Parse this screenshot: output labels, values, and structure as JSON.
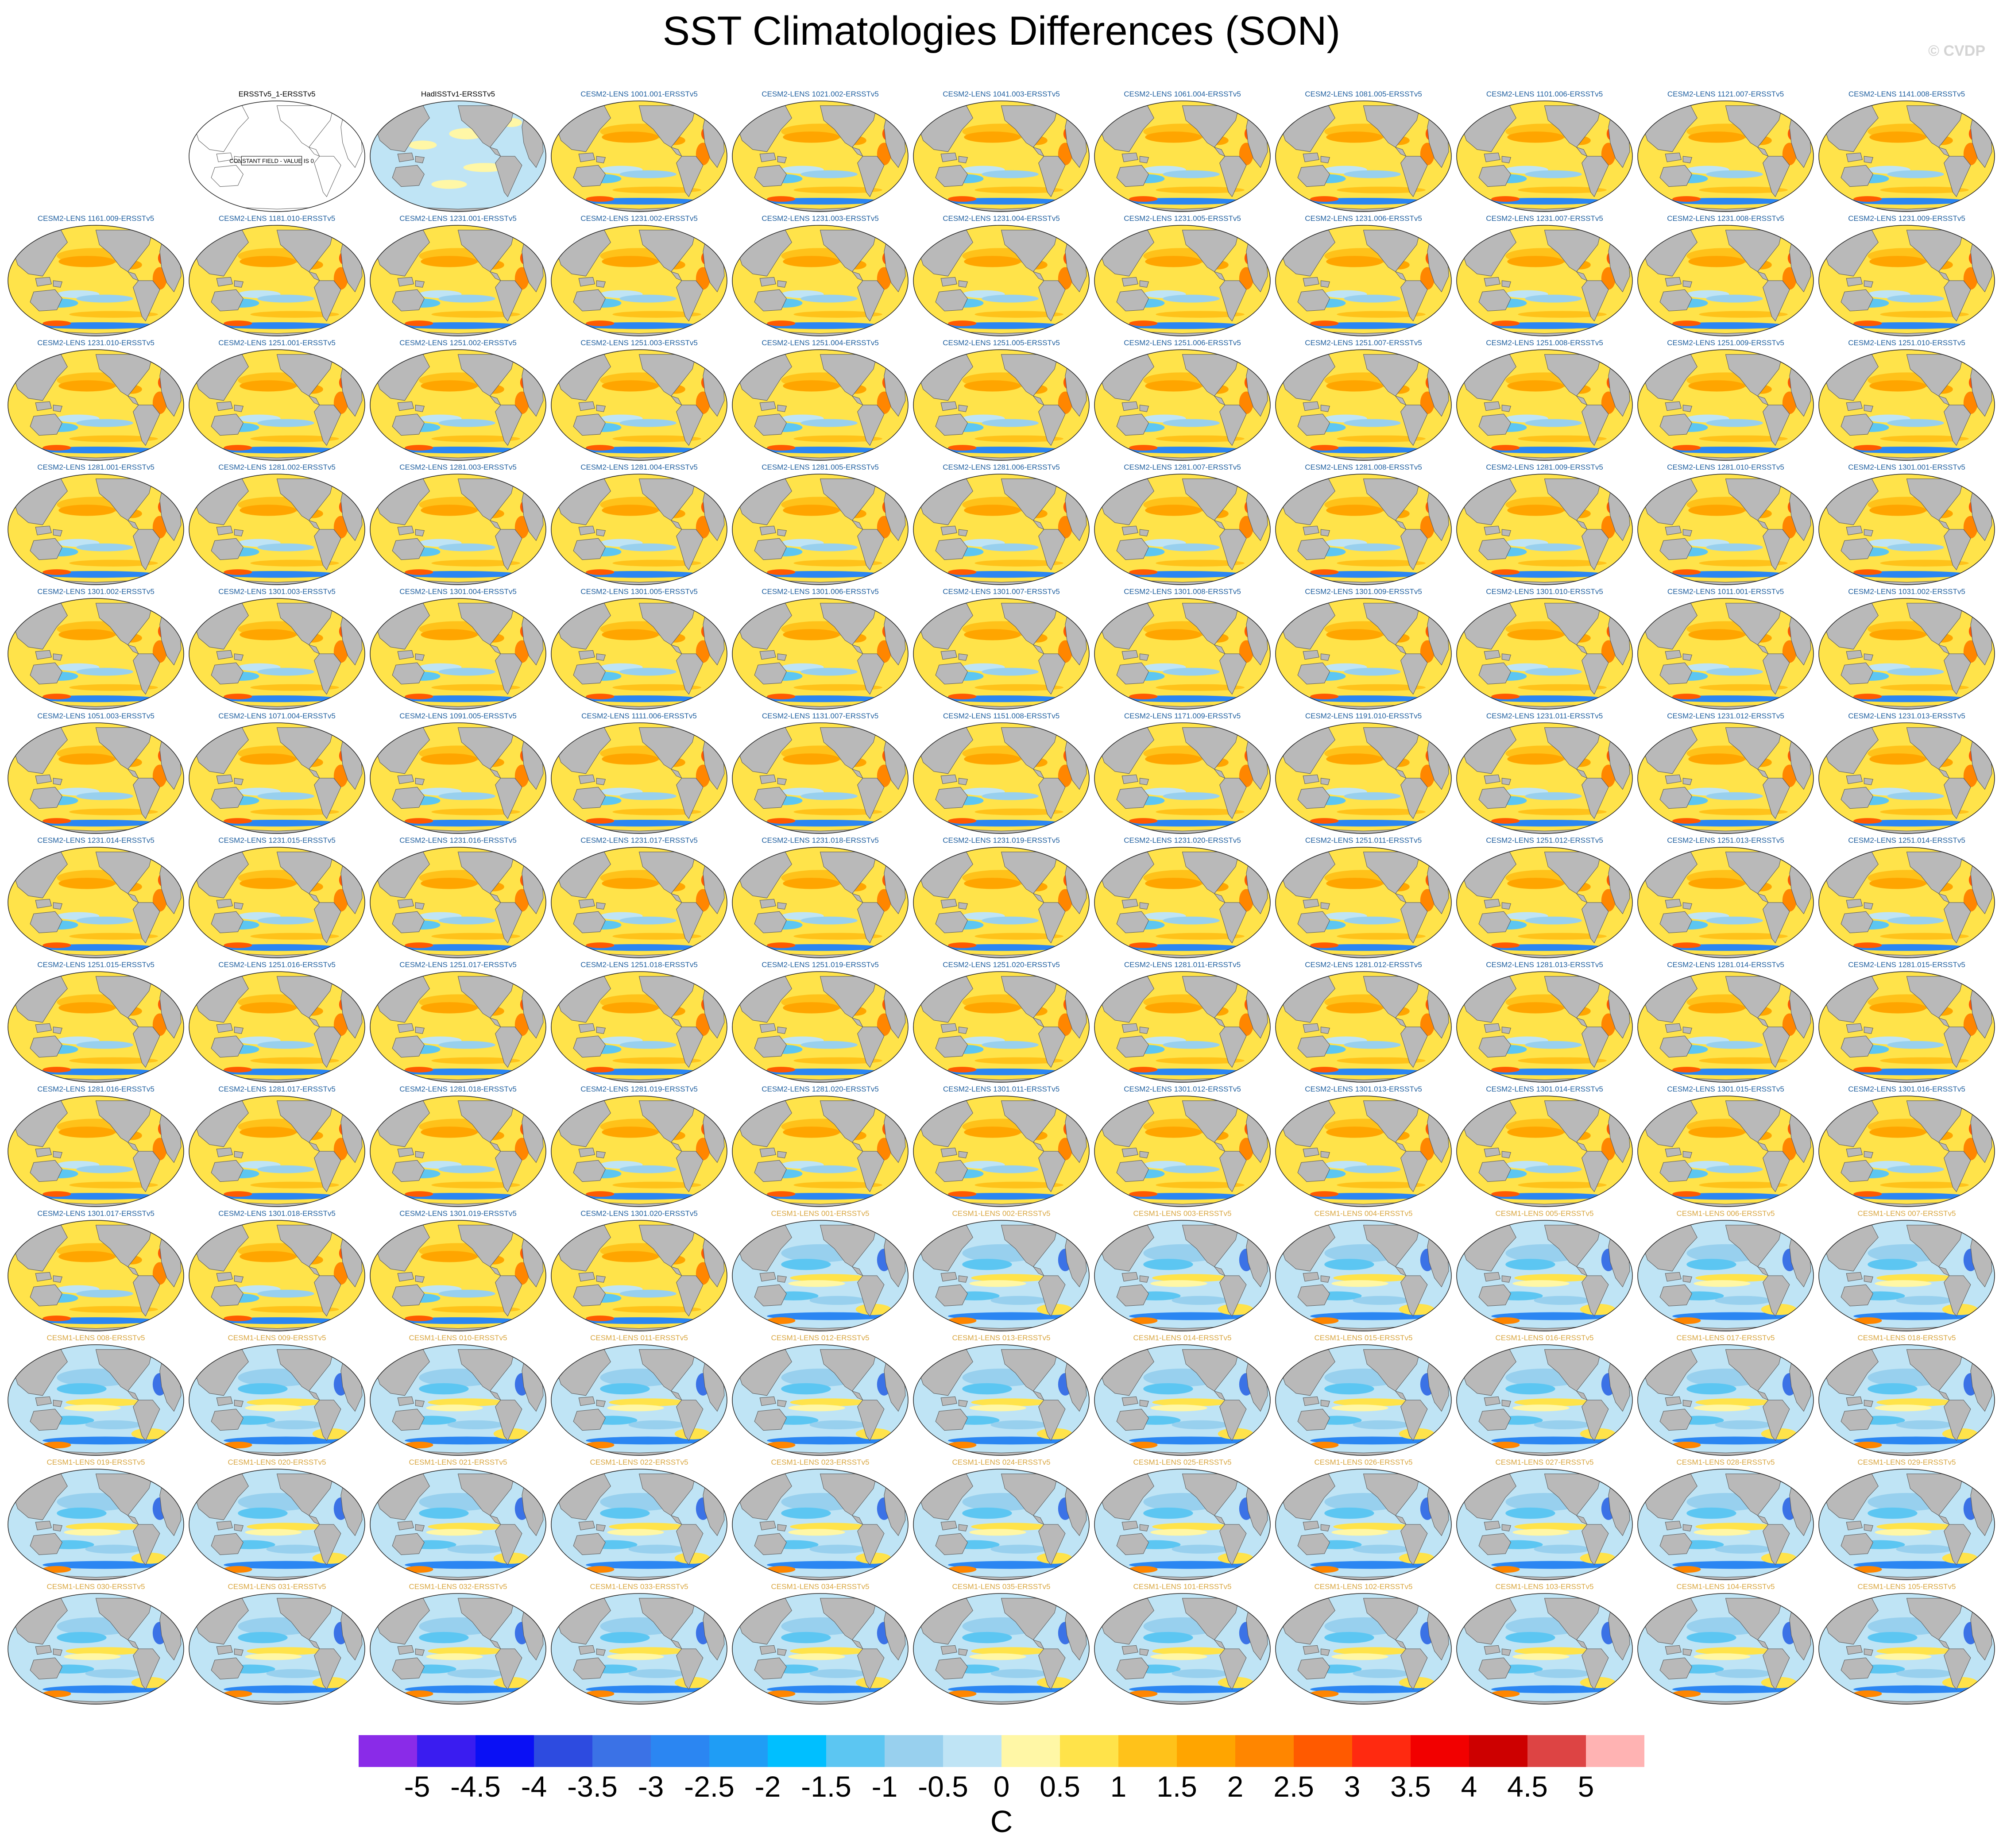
{
  "figure": {
    "title": "SST Climatologies Differences (SON)",
    "watermark": "© CVDP",
    "units": "C"
  },
  "chart_data": {
    "type": "heatmap",
    "title": "SST Climatologies Differences (SON)",
    "colorbar_levels": [
      "-5",
      "-4.5",
      "-4",
      "-3.5",
      "-3",
      "-2.5",
      "-2",
      "-1.5",
      "-1",
      "-0.5",
      "0",
      "0.5",
      "1",
      "1.5",
      "2",
      "2.5",
      "3",
      "3.5",
      "4",
      "4.5",
      "5"
    ],
    "colorbar_colors": [
      "#8a2be8",
      "#3a1cf0",
      "#0a10f5",
      "#2d4be0",
      "#3b72e6",
      "#2b86f2",
      "#1f9df5",
      "#00bfff",
      "#5cc6f2",
      "#98d0ee",
      "#bfe4f5",
      "#fff7a6",
      "#ffe34a",
      "#ffc21a",
      "#ffa500",
      "#ff8600",
      "#ff5a00",
      "#ff2a10",
      "#f20000",
      "#cd0000",
      "#dd4444",
      "#ffb3b3"
    ],
    "units": "C",
    "panel_titles": [
      "ERSSTv5_1-ERSSTv5",
      "HadISSTv1-ERSSTv5",
      "CESM2-LENS 1001.001-ERSSTv5",
      "CESM2-LENS 1021.002-ERSSTv5",
      "CESM2-LENS 1041.003-ERSSTv5",
      "CESM2-LENS 1061.004-ERSSTv5",
      "CESM2-LENS 1081.005-ERSSTv5",
      "CESM2-LENS 1101.006-ERSSTv5",
      "CESM2-LENS 1121.007-ERSSTv5",
      "CESM2-LENS 1141.008-ERSSTv5",
      "CESM2-LENS 1161.009-ERSSTv5",
      "CESM2-LENS 1181.010-ERSSTv5",
      "CESM2-LENS 1231.001-ERSSTv5",
      "CESM2-LENS 1231.002-ERSSTv5",
      "CESM2-LENS 1231.003-ERSSTv5",
      "CESM2-LENS 1231.004-ERSSTv5",
      "CESM2-LENS 1231.005-ERSSTv5",
      "CESM2-LENS 1231.006-ERSSTv5",
      "CESM2-LENS 1231.007-ERSSTv5",
      "CESM2-LENS 1231.008-ERSSTv5",
      "CESM2-LENS 1231.009-ERSSTv5",
      "CESM2-LENS 1231.010-ERSSTv5",
      "CESM2-LENS 1251.001-ERSSTv5",
      "CESM2-LENS 1251.002-ERSSTv5",
      "CESM2-LENS 1251.003-ERSSTv5",
      "CESM2-LENS 1251.004-ERSSTv5",
      "CESM2-LENS 1251.005-ERSSTv5",
      "CESM2-LENS 1251.006-ERSSTv5",
      "CESM2-LENS 1251.007-ERSSTv5",
      "CESM2-LENS 1251.008-ERSSTv5",
      "CESM2-LENS 1251.009-ERSSTv5",
      "CESM2-LENS 1251.010-ERSSTv5",
      "CESM2-LENS 1281.001-ERSSTv5",
      "CESM2-LENS 1281.002-ERSSTv5",
      "CESM2-LENS 1281.003-ERSSTv5",
      "CESM2-LENS 1281.004-ERSSTv5",
      "CESM2-LENS 1281.005-ERSSTv5",
      "CESM2-LENS 1281.006-ERSSTv5",
      "CESM2-LENS 1281.007-ERSSTv5",
      "CESM2-LENS 1281.008-ERSSTv5",
      "CESM2-LENS 1281.009-ERSSTv5",
      "CESM2-LENS 1281.010-ERSSTv5",
      "CESM2-LENS 1301.001-ERSSTv5",
      "CESM2-LENS 1301.002-ERSSTv5",
      "CESM2-LENS 1301.003-ERSSTv5",
      "CESM2-LENS 1301.004-ERSSTv5",
      "CESM2-LENS 1301.005-ERSSTv5",
      "CESM2-LENS 1301.006-ERSSTv5",
      "CESM2-LENS 1301.007-ERSSTv5",
      "CESM2-LENS 1301.008-ERSSTv5",
      "CESM2-LENS 1301.009-ERSSTv5",
      "CESM2-LENS 1301.010-ERSSTv5",
      "CESM2-LENS 1011.001-ERSSTv5",
      "CESM2-LENS 1031.002-ERSSTv5",
      "CESM2-LENS 1051.003-ERSSTv5",
      "CESM2-LENS 1071.004-ERSSTv5",
      "CESM2-LENS 1091.005-ERSSTv5",
      "CESM2-LENS 1111.006-ERSSTv5",
      "CESM2-LENS 1131.007-ERSSTv5",
      "CESM2-LENS 1151.008-ERSSTv5",
      "CESM2-LENS 1171.009-ERSSTv5",
      "CESM2-LENS 1191.010-ERSSTv5",
      "CESM2-LENS 1231.011-ERSSTv5",
      "CESM2-LENS 1231.012-ERSSTv5",
      "CESM2-LENS 1231.013-ERSSTv5",
      "CESM2-LENS 1231.014-ERSSTv5",
      "CESM2-LENS 1231.015-ERSSTv5",
      "CESM2-LENS 1231.016-ERSSTv5",
      "CESM2-LENS 1231.017-ERSSTv5",
      "CESM2-LENS 1231.018-ERSSTv5",
      "CESM2-LENS 1231.019-ERSSTv5",
      "CESM2-LENS 1231.020-ERSSTv5",
      "CESM2-LENS 1251.011-ERSSTv5",
      "CESM2-LENS 1251.012-ERSSTv5",
      "CESM2-LENS 1251.013-ERSSTv5",
      "CESM2-LENS 1251.014-ERSSTv5",
      "CESM2-LENS 1251.015-ERSSTv5",
      "CESM2-LENS 1251.016-ERSSTv5",
      "CESM2-LENS 1251.017-ERSSTv5",
      "CESM2-LENS 1251.018-ERSSTv5",
      "CESM2-LENS 1251.019-ERSSTv5",
      "CESM2-LENS 1251.020-ERSSTv5",
      "CESM2-LENS 1281.011-ERSSTv5",
      "CESM2-LENS 1281.012-ERSSTv5",
      "CESM2-LENS 1281.013-ERSSTv5",
      "CESM2-LENS 1281.014-ERSSTv5",
      "CESM2-LENS 1281.015-ERSSTv5",
      "CESM2-LENS 1281.016-ERSSTv5",
      "CESM2-LENS 1281.017-ERSSTv5",
      "CESM2-LENS 1281.018-ERSSTv5",
      "CESM2-LENS 1281.019-ERSSTv5",
      "CESM2-LENS 1281.020-ERSSTv5",
      "CESM2-LENS 1301.011-ERSSTv5",
      "CESM2-LENS 1301.012-ERSSTv5",
      "CESM2-LENS 1301.013-ERSSTv5",
      "CESM2-LENS 1301.014-ERSSTv5",
      "CESM2-LENS 1301.015-ERSSTv5",
      "CESM2-LENS 1301.016-ERSSTv5",
      "CESM2-LENS 1301.017-ERSSTv5",
      "CESM2-LENS 1301.018-ERSSTv5",
      "CESM2-LENS 1301.019-ERSSTv5",
      "CESM2-LENS 1301.020-ERSSTv5",
      "CESM1-LENS 001-ERSSTv5",
      "CESM1-LENS 002-ERSSTv5",
      "CESM1-LENS 003-ERSSTv5",
      "CESM1-LENS 004-ERSSTv5",
      "CESM1-LENS 005-ERSSTv5",
      "CESM1-LENS 006-ERSSTv5",
      "CESM1-LENS 007-ERSSTv5",
      "CESM1-LENS 008-ERSSTv5",
      "CESM1-LENS 009-ERSSTv5",
      "CESM1-LENS 010-ERSSTv5",
      "CESM1-LENS 011-ERSSTv5",
      "CESM1-LENS 012-ERSSTv5",
      "CESM1-LENS 013-ERSSTv5",
      "CESM1-LENS 014-ERSSTv5",
      "CESM1-LENS 015-ERSSTv5",
      "CESM1-LENS 016-ERSSTv5",
      "CESM1-LENS 017-ERSSTv5",
      "CESM1-LENS 018-ERSSTv5",
      "CESM1-LENS 019-ERSSTv5",
      "CESM1-LENS 020-ERSSTv5",
      "CESM1-LENS 021-ERSSTv5",
      "CESM1-LENS 022-ERSSTv5",
      "CESM1-LENS 023-ERSSTv5",
      "CESM1-LENS 024-ERSSTv5",
      "CESM1-LENS 025-ERSSTv5",
      "CESM1-LENS 026-ERSSTv5",
      "CESM1-LENS 027-ERSSTv5",
      "CESM1-LENS 028-ERSSTv5",
      "CESM1-LENS 029-ERSSTv5",
      "CESM1-LENS 030-ERSSTv5",
      "CESM1-LENS 031-ERSSTv5",
      "CESM1-LENS 032-ERSSTv5",
      "CESM1-LENS 033-ERSSTv5",
      "CESM1-LENS 034-ERSSTv5",
      "CESM1-LENS 035-ERSSTv5",
      "CESM1-LENS 101-ERSSTv5",
      "CESM1-LENS 102-ERSSTv5",
      "CESM1-LENS 103-ERSSTv5",
      "CESM1-LENS 104-ERSSTv5",
      "CESM1-LENS 105-ERSSTv5"
    ],
    "constant_field_label": "CONSTANT FIELD - VALUE IS 0",
    "title_colors": {
      "obs": "#000000",
      "cesm2": "#1f5f9f",
      "cesm1": "#d9a640"
    },
    "panel_regimes": {
      "ERSSTv5_1-ERSSTv5": "constant",
      "HadISSTv1-ERSSTv5": "near-zero",
      "CESM2-LENS": "warm bias",
      "CESM1-LENS": "cool bias"
    },
    "land_color": "#b9b9b9"
  }
}
